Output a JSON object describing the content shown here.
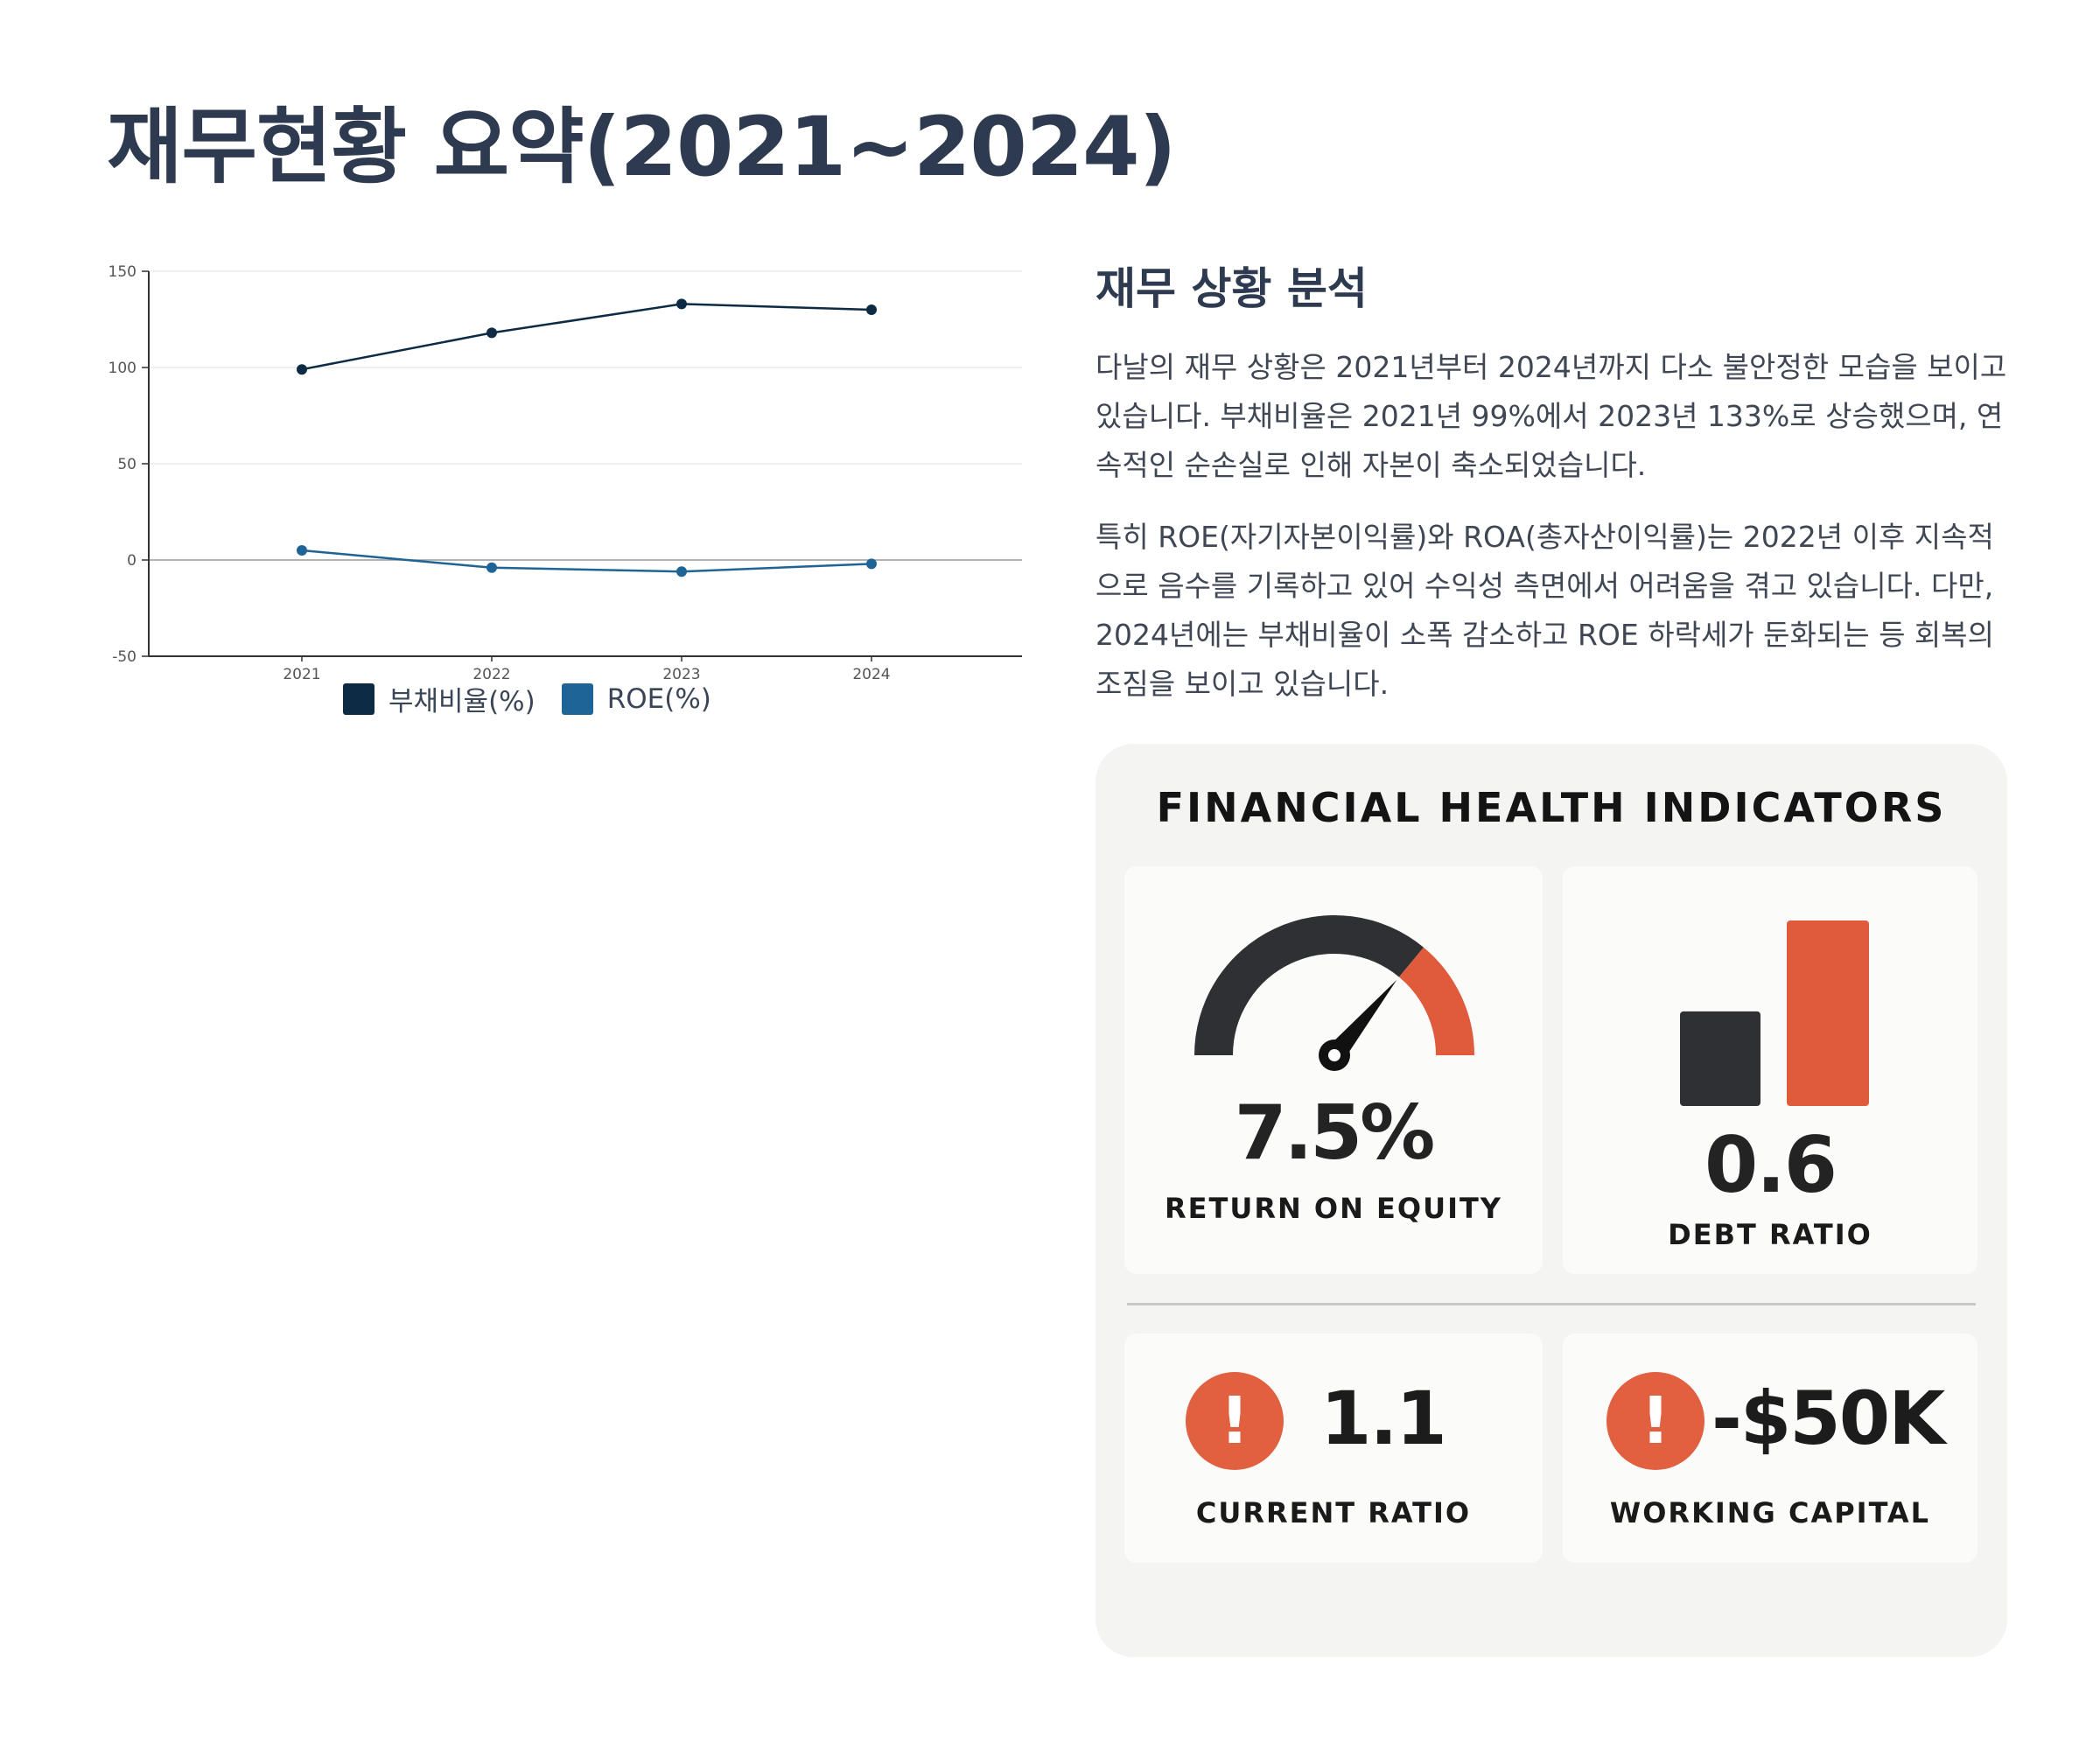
{
  "page": {
    "title": "재무현황 요약(2021~2024)"
  },
  "chart_data": {
    "type": "line",
    "x": [
      "2021",
      "2022",
      "2023",
      "2024"
    ],
    "series": [
      {
        "name": "부채비율(%)",
        "values": [
          99,
          118,
          133,
          130
        ],
        "color": "#0d2b45"
      },
      {
        "name": "ROE(%)",
        "values": [
          5,
          -4,
          -6,
          -2
        ],
        "color": "#1f6496"
      }
    ],
    "ylim": [
      -50,
      150
    ],
    "yticks": [
      150,
      100,
      50,
      0,
      -50
    ],
    "grid": true,
    "legend_position": "bottom"
  },
  "analysis": {
    "heading": "재무 상황 분석",
    "paragraph1": "다날의 재무 상황은 2021년부터 2024년까지 다소 불안정한 모습을 보이고 있습니다. 부채비율은 2021년 99%에서 2023년 133%로 상승했으며, 연속적인 순손실로 인해 자본이 축소되었습니다.",
    "paragraph2": "특히 ROE(자기자본이익률)와 ROA(총자산이익률)는 2022년 이후 지속적으로 음수를 기록하고 있어 수익성 측면에서 어려움을 겪고 있습니다. 다만, 2024년에는 부채비율이 소폭 감소하고 ROE 하락세가 둔화되는 등 회복의 조짐을 보이고 있습니다."
  },
  "indicators": {
    "title": "FINANCIAL HEALTH INDICATORS",
    "roe": {
      "value": "7.5%",
      "label": "RETURN ON EQUITY",
      "gauge_fraction": 0.72
    },
    "debt_ratio": {
      "value": "0.6",
      "label": "DEBT RATIO",
      "bar_values": [
        0.6,
        1.0
      ]
    },
    "current_ratio": {
      "value": "1.1",
      "label": "CURRENT RATIO",
      "icon": "alert-icon"
    },
    "working_capital": {
      "value": "-$50K",
      "label": "WORKING CAPITAL",
      "icon": "alert-icon"
    }
  },
  "colors": {
    "dark": "#2f3033",
    "accent": "#e05a3c",
    "navy": "#0d2b45",
    "blue": "#1f6496"
  }
}
